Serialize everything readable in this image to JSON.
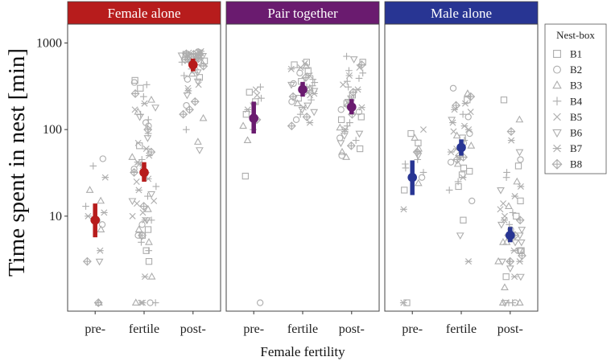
{
  "chart_data": {
    "type": "scatter",
    "y_scale": "log",
    "ylim": [
      0.8,
      1650
    ],
    "ylabel": "Time spent in nest [min]",
    "xlabel": "Female fertility",
    "categories": [
      "pre-",
      "fertile",
      "post-"
    ],
    "y_ticks": [
      10,
      100,
      1000
    ],
    "y_tick_labels": [
      "10",
      "100",
      "1000"
    ],
    "legend": {
      "title": "Nest-box",
      "placement": "right",
      "entries": [
        {
          "label": "B1",
          "shape": "square"
        },
        {
          "label": "B2",
          "shape": "circle"
        },
        {
          "label": "B3",
          "shape": "triangle-up"
        },
        {
          "label": "B4",
          "shape": "plus"
        },
        {
          "label": "B5",
          "shape": "cross"
        },
        {
          "label": "B6",
          "shape": "triangle-down"
        },
        {
          "label": "B7",
          "shape": "asterisk"
        },
        {
          "label": "B8",
          "shape": "diamond-plus"
        }
      ]
    },
    "panels": [
      {
        "title": "Female alone",
        "color": "#b71c1c",
        "summary": [
          {
            "category": "pre-",
            "mean": 9,
            "low": 5.7,
            "high": 14
          },
          {
            "category": "fertile",
            "mean": 32,
            "low": 25,
            "high": 42
          },
          {
            "category": "post-",
            "mean": 560,
            "low": 470,
            "high": 660
          }
        ],
        "raw": [
          {
            "category": "pre-",
            "values": [
              1,
              1,
              3,
              3,
              4,
              7,
              8,
              9,
              10,
              11,
              13,
              15,
              20,
              28,
              38,
              46
            ]
          },
          {
            "category": "fertile",
            "values": [
              1,
              1,
              1,
              1,
              1,
              2,
              2,
              3,
              4,
              4,
              5,
              5,
              6,
              6,
              6,
              7,
              7,
              8,
              9,
              9,
              9,
              10,
              11,
              12,
              13,
              14,
              15,
              15,
              17,
              18,
              20,
              22,
              25,
              27,
              30,
              32,
              35,
              38,
              40,
              42,
              45,
              48,
              50,
              55,
              60,
              65,
              70,
              80,
              90,
              100,
              110,
              120,
              130,
              140,
              150,
              160,
              170,
              180,
              200,
              220,
              240,
              260,
              300,
              330,
              350,
              370
            ]
          },
          {
            "category": "post-",
            "values": [
              58,
              72,
              100,
              135,
              150,
              170,
              190,
              210,
              250,
              280,
              300,
              330,
              360,
              380,
              400,
              420,
              440,
              460,
              480,
              500,
              520,
              540,
              560,
              580,
              600,
              610,
              620,
              630,
              640,
              650,
              660,
              670,
              680,
              690,
              700,
              700,
              710,
              720,
              720,
              730,
              740,
              740,
              750,
              760,
              770,
              780,
              790,
              800
            ]
          }
        ]
      },
      {
        "title": "Pair together",
        "color": "#6a1b6f",
        "summary": [
          {
            "category": "pre-",
            "mean": 135,
            "low": 90,
            "high": 210
          },
          {
            "category": "fertile",
            "mean": 290,
            "low": 240,
            "high": 355
          },
          {
            "category": "post-",
            "mean": 182,
            "low": 150,
            "high": 225
          }
        ],
        "raw": [
          {
            "category": "pre-",
            "values": [
              1,
              29,
              75,
              100,
              110,
              130,
              150,
              170,
              190,
              210,
              230,
              250,
              270,
              290,
              310
            ]
          },
          {
            "category": "fertile",
            "values": [
              110,
              120,
              130,
              140,
              150,
              160,
              170,
              180,
              190,
              200,
              210,
              220,
              230,
              240,
              250,
              260,
              270,
              280,
              290,
              300,
              310,
              320,
              330,
              340,
              350,
              360,
              380,
              400,
              420,
              450,
              480,
              500,
              520,
              540,
              560,
              580,
              600
            ]
          },
          {
            "category": "post-",
            "values": [
              48,
              50,
              55,
              60,
              65,
              70,
              75,
              80,
              85,
              90,
              95,
              100,
              105,
              110,
              120,
              130,
              140,
              150,
              160,
              170,
              180,
              190,
              200,
              210,
              220,
              230,
              250,
              270,
              290,
              310,
              330,
              360,
              390,
              420,
              450,
              480,
              520,
              560,
              600,
              650,
              700
            ]
          }
        ]
      },
      {
        "title": "Male alone",
        "color": "#283593",
        "summary": [
          {
            "category": "pre-",
            "mean": 28,
            "low": 17.5,
            "high": 44
          },
          {
            "category": "fertile",
            "mean": 62,
            "low": 50,
            "high": 77
          },
          {
            "category": "post-",
            "mean": 6,
            "low": 5,
            "high": 7.5
          }
        ],
        "raw": [
          {
            "category": "pre-",
            "values": [
              1,
              1,
              12,
              20,
              24,
              28,
              32,
              36,
              40,
              45,
              50,
              55,
              60,
              70,
              80,
              90,
              100
            ]
          },
          {
            "category": "fertile",
            "values": [
              3,
              6,
              9,
              15,
              20,
              22,
              25,
              28,
              30,
              33,
              36,
              40,
              42,
              45,
              48,
              50,
              55,
              58,
              60,
              65,
              70,
              75,
              80,
              85,
              90,
              95,
              100,
              110,
              120,
              130,
              140,
              150,
              160,
              170,
              190,
              200,
              220,
              240,
              260,
              300
            ]
          },
          {
            "category": "post-",
            "values": [
              1,
              1,
              1,
              1,
              1,
              1,
              1.5,
              2,
              2,
              2,
              2.5,
              3,
              3,
              3,
              3,
              3,
              3.5,
              4,
              4,
              4,
              4,
              5,
              5,
              5,
              5,
              6,
              6,
              6,
              6,
              7,
              7,
              8,
              8,
              9,
              9,
              10,
              10,
              11,
              12,
              13,
              14,
              15,
              17,
              20,
              22,
              25,
              28,
              32,
              38,
              45,
              55,
              75,
              95,
              130,
              220
            ]
          }
        ]
      }
    ]
  }
}
